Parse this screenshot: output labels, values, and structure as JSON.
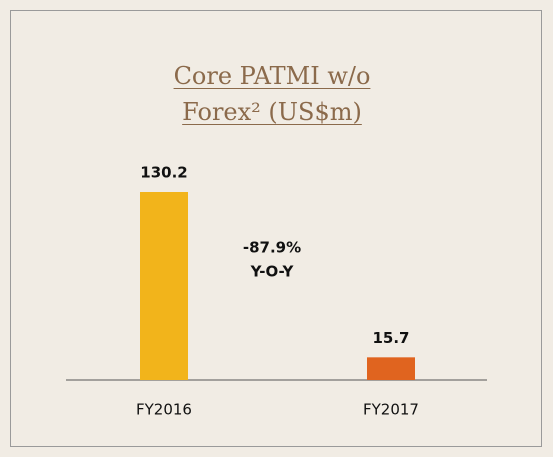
{
  "chart_data": {
    "type": "bar",
    "title": "Core PATMI w/o Forex² (US$m)",
    "categories": [
      "FY2016",
      "FY2017"
    ],
    "values": [
      130.2,
      15.7
    ],
    "colors": [
      "#f2b41b",
      "#e0641f"
    ],
    "annotation": [
      "-87.9%",
      "Y-O-Y"
    ]
  }
}
